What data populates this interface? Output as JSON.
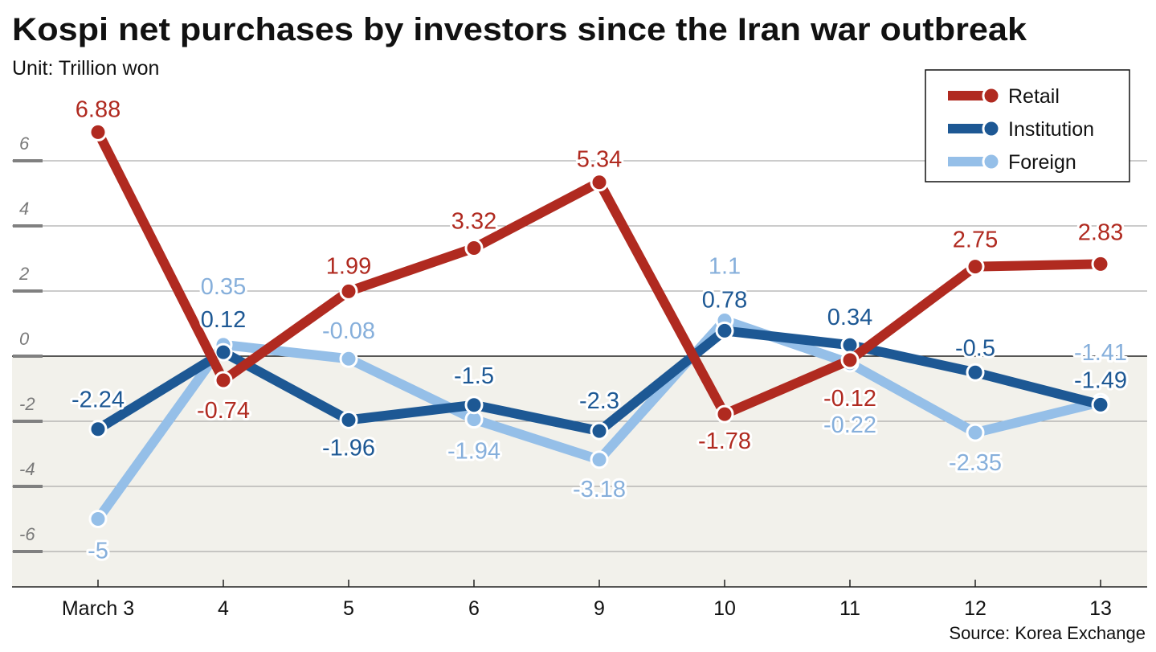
{
  "chart_data": {
    "type": "line",
    "title": "Kospi net purchases by investors since the Iran war outbreak",
    "subtitle": "Unit: Trillion won",
    "source": "Source: Korea Exchange",
    "categories": [
      "March 3",
      "4",
      "5",
      "6",
      "9",
      "10",
      "11",
      "12",
      "13"
    ],
    "yticks": [
      6,
      4,
      2,
      0,
      -2,
      -4,
      -6
    ],
    "ylim": [
      -7.1,
      7.5
    ],
    "grid": true,
    "legend_position": "top-right",
    "series": [
      {
        "name": "Retail",
        "color": "#b02a20",
        "label_color": "#b02a20",
        "values": [
          6.88,
          -0.74,
          1.99,
          3.32,
          5.34,
          -1.78,
          -0.12,
          2.75,
          2.83
        ]
      },
      {
        "name": "Institution",
        "color": "#1d5894",
        "label_color": "#1d5894",
        "values": [
          -2.24,
          0.12,
          -1.96,
          -1.5,
          -2.3,
          0.78,
          0.34,
          -0.5,
          -1.49
        ]
      },
      {
        "name": "Foreign",
        "color": "#95bfe8",
        "label_color": "#86afdb",
        "values": [
          -5,
          0.35,
          -0.08,
          -1.94,
          -3.18,
          1.1,
          -0.22,
          -2.35,
          -1.41
        ]
      }
    ]
  }
}
